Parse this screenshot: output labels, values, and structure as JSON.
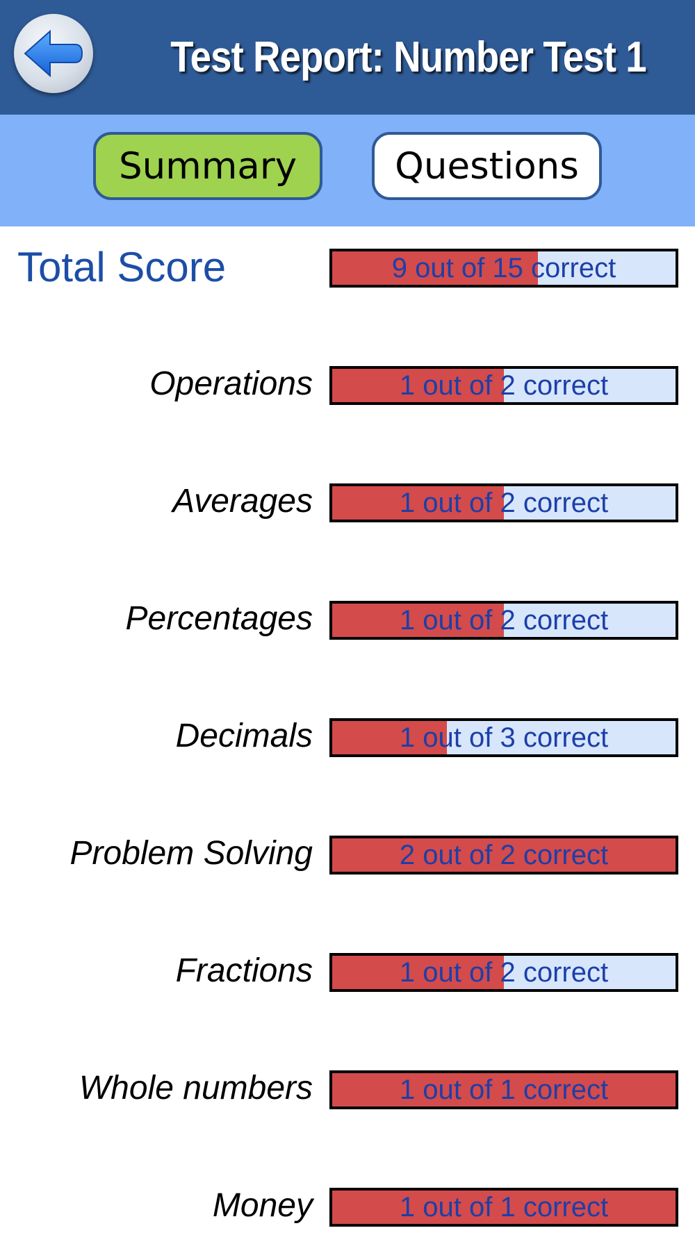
{
  "header": {
    "title": "Test Report: Number Test 1",
    "back_icon": "back-arrow-icon"
  },
  "tabs": [
    {
      "label": "Summary",
      "selected": true
    },
    {
      "label": "Questions",
      "selected": false
    }
  ],
  "total": {
    "label": "Total Score",
    "correct": 9,
    "total": 15,
    "text": "9 out of 15 correct"
  },
  "categories": [
    {
      "label": "Operations",
      "correct": 1,
      "total": 2,
      "text": "1 out of 2 correct"
    },
    {
      "label": "Averages",
      "correct": 1,
      "total": 2,
      "text": "1 out of 2 correct"
    },
    {
      "label": "Percentages",
      "correct": 1,
      "total": 2,
      "text": "1 out of 2 correct"
    },
    {
      "label": "Decimals",
      "correct": 1,
      "total": 3,
      "text": "1 out of 3 correct"
    },
    {
      "label": "Problem Solving",
      "correct": 2,
      "total": 2,
      "text": "2 out of 2 correct"
    },
    {
      "label": "Fractions",
      "correct": 1,
      "total": 2,
      "text": "1 out of 2 correct"
    },
    {
      "label": "Whole numbers",
      "correct": 1,
      "total": 1,
      "text": "1 out of 1 correct"
    },
    {
      "label": "Money",
      "correct": 1,
      "total": 1,
      "text": "1 out of 1 correct"
    }
  ],
  "colors": {
    "header": "#2e5a96",
    "tabbar": "#80b1f9",
    "tab_selected": "#9fd24e",
    "bar_fill": "#d44b4b",
    "bar_empty": "#d7e6fb",
    "bar_text": "#1c3fa8",
    "total_label": "#1c4ea6"
  }
}
